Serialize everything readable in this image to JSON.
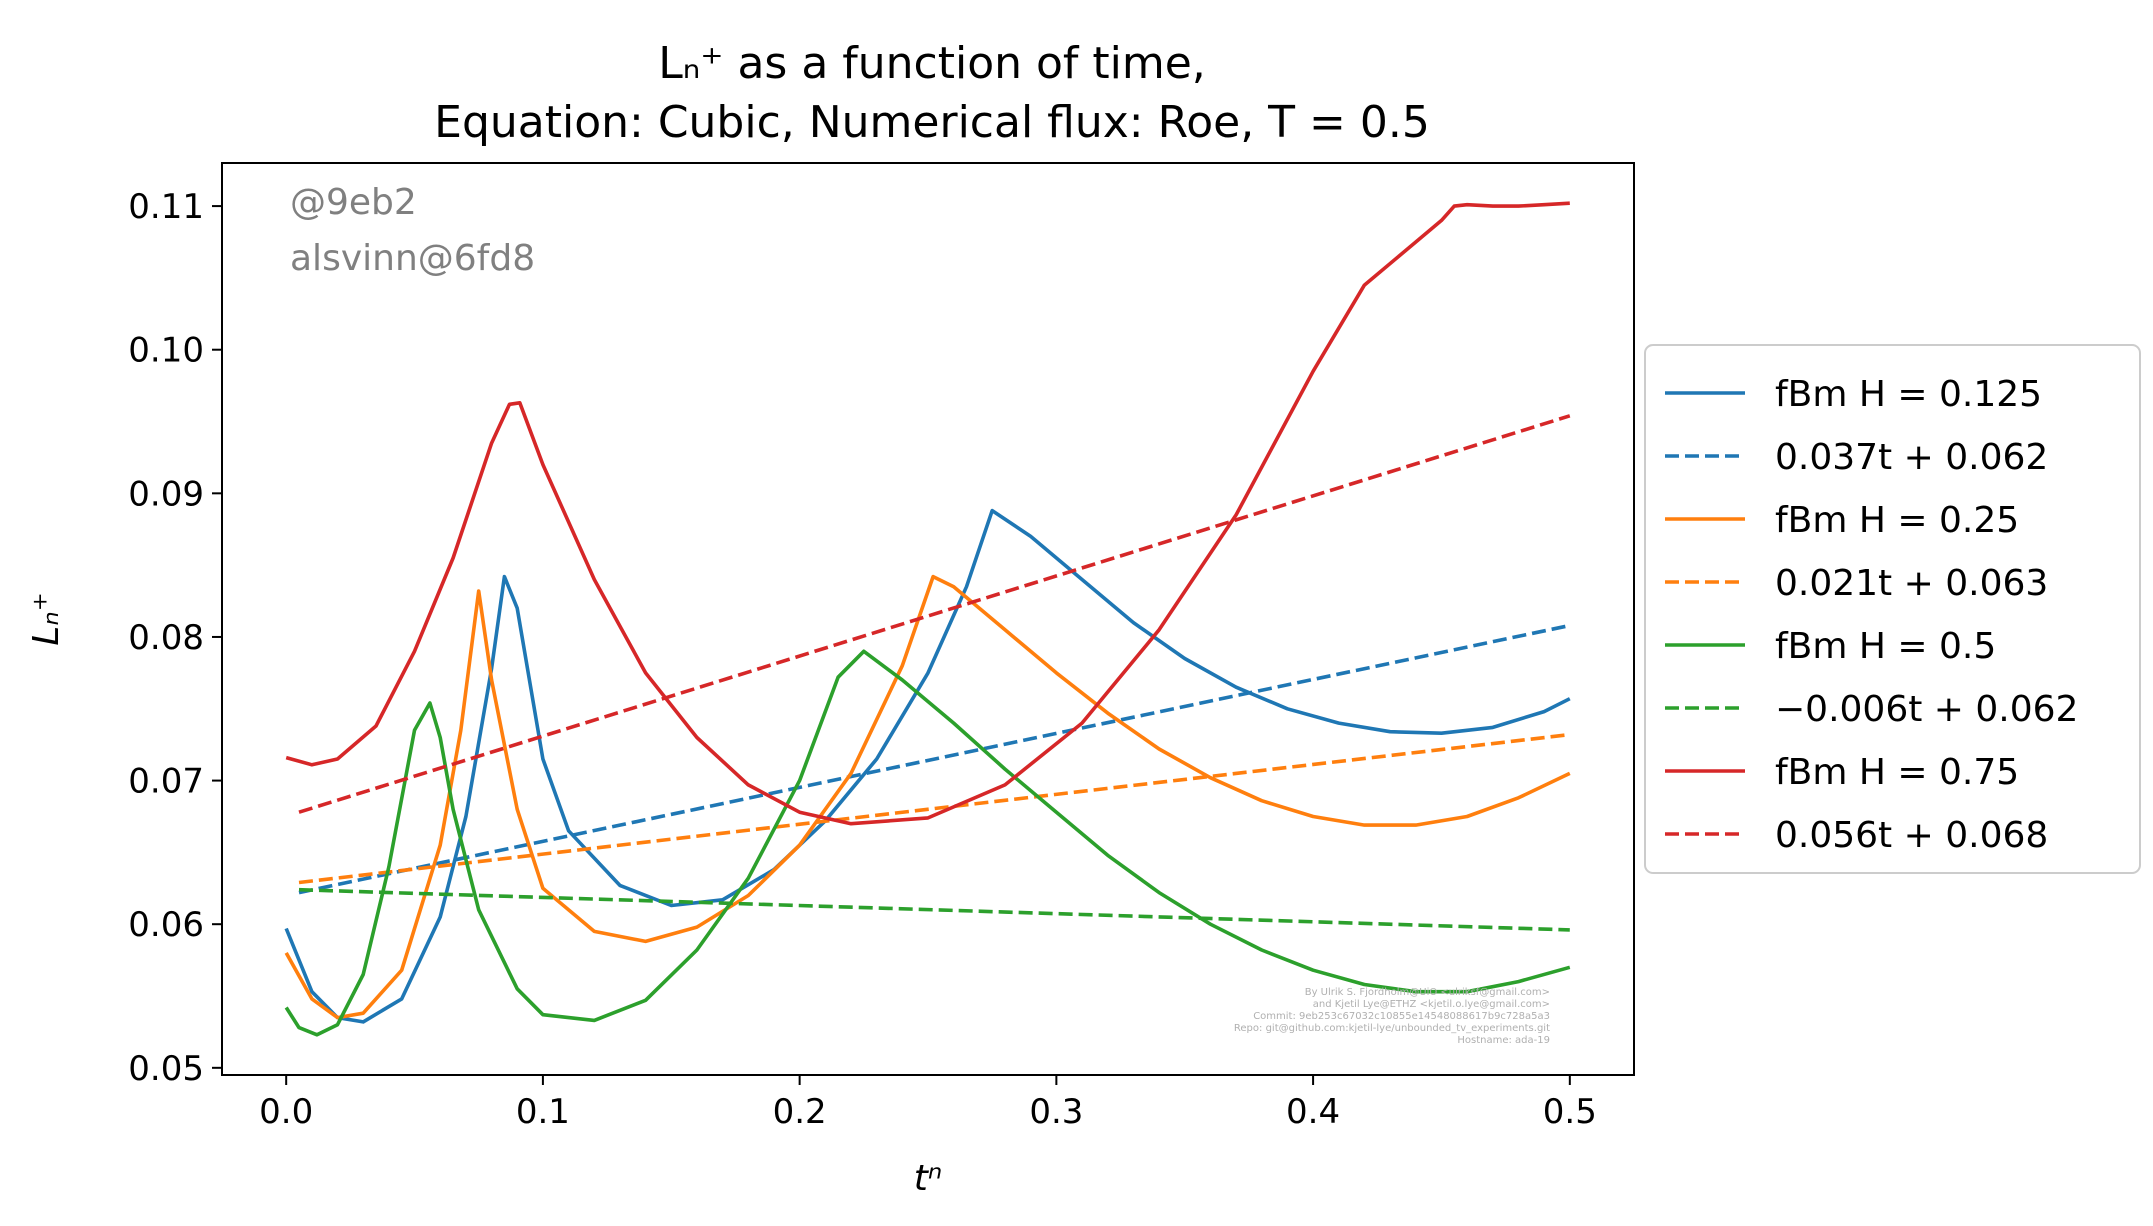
{
  "chart_data": {
    "type": "line",
    "title_lines": [
      "Lₙ⁺  as a function of time,",
      "Equation: Cubic, Numerical flux: Roe, T = 0.5"
    ],
    "xlabel": "tⁿ",
    "ylabel": "Lₙ⁺",
    "xlim": [
      -0.025,
      0.525
    ],
    "ylim": [
      0.0495,
      0.113
    ],
    "xticks": [
      0.0,
      0.1,
      0.2,
      0.3,
      0.4,
      0.5
    ],
    "xtick_labels": [
      "0.0",
      "0.1",
      "0.2",
      "0.3",
      "0.4",
      "0.5"
    ],
    "yticks": [
      0.05,
      0.06,
      0.07,
      0.08,
      0.09,
      0.1,
      0.11
    ],
    "ytick_labels": [
      "0.05",
      "0.06",
      "0.07",
      "0.08",
      "0.09",
      "0.10",
      "0.11"
    ],
    "grid": false,
    "legend_position": "outside-right",
    "annotations": [
      "@9eb2",
      "alsvinn@6fd8"
    ],
    "credit_lines": [
      "By Ulrik S. Fjordholm@UiO <ulriksf@gmail.com>",
      "and Kjetil Lye@ETHZ <kjetil.o.lye@gmail.com>",
      "Commit: 9eb253c67032c10855e14548088617b9c728a5a3",
      "Repo: git@github.com:kjetil-lye/unbounded_tv_experiments.git",
      "Hostname: ada-19"
    ],
    "series": [
      {
        "name": "fBm H = 0.125",
        "color": "#1f77b4",
        "style": "solid",
        "x": [
          0.0,
          0.01,
          0.02,
          0.03,
          0.045,
          0.06,
          0.07,
          0.08,
          0.085,
          0.09,
          0.1,
          0.11,
          0.13,
          0.15,
          0.17,
          0.19,
          0.21,
          0.23,
          0.25,
          0.265,
          0.275,
          0.29,
          0.31,
          0.33,
          0.35,
          0.37,
          0.39,
          0.41,
          0.43,
          0.45,
          0.47,
          0.49,
          0.5
        ],
        "y": [
          0.0597,
          0.0553,
          0.0535,
          0.0532,
          0.0548,
          0.0605,
          0.0675,
          0.0778,
          0.0842,
          0.082,
          0.0715,
          0.0665,
          0.0627,
          0.0613,
          0.0617,
          0.0638,
          0.0672,
          0.0715,
          0.0775,
          0.0835,
          0.0888,
          0.087,
          0.084,
          0.081,
          0.0785,
          0.0765,
          0.075,
          0.074,
          0.0734,
          0.0733,
          0.0737,
          0.0748,
          0.0757
        ]
      },
      {
        "name": "0.037t + 0.062",
        "color": "#1f77b4",
        "style": "dashed",
        "x": [
          0.005,
          0.5
        ],
        "y": [
          0.0622,
          0.0808
        ]
      },
      {
        "name": "fBm H = 0.25",
        "color": "#ff7f0e",
        "style": "solid",
        "x": [
          0.0,
          0.01,
          0.02,
          0.03,
          0.045,
          0.06,
          0.068,
          0.075,
          0.08,
          0.09,
          0.1,
          0.12,
          0.14,
          0.16,
          0.18,
          0.2,
          0.22,
          0.24,
          0.252,
          0.26,
          0.28,
          0.3,
          0.32,
          0.34,
          0.36,
          0.38,
          0.4,
          0.42,
          0.44,
          0.46,
          0.48,
          0.5
        ],
        "y": [
          0.058,
          0.0548,
          0.0535,
          0.0538,
          0.0568,
          0.0655,
          0.0735,
          0.0832,
          0.077,
          0.068,
          0.0625,
          0.0595,
          0.0588,
          0.0598,
          0.062,
          0.0655,
          0.0705,
          0.078,
          0.0842,
          0.0835,
          0.0805,
          0.0775,
          0.0747,
          0.0722,
          0.0702,
          0.0686,
          0.0675,
          0.0669,
          0.0669,
          0.0675,
          0.0688,
          0.0705
        ]
      },
      {
        "name": "0.021t + 0.063",
        "color": "#ff7f0e",
        "style": "dashed",
        "x": [
          0.005,
          0.5
        ],
        "y": [
          0.0629,
          0.0732
        ]
      },
      {
        "name": "fBm H = 0.5",
        "color": "#2ca02c",
        "style": "solid",
        "x": [
          0.0,
          0.005,
          0.012,
          0.02,
          0.03,
          0.04,
          0.05,
          0.056,
          0.06,
          0.065,
          0.075,
          0.09,
          0.1,
          0.12,
          0.14,
          0.16,
          0.18,
          0.2,
          0.215,
          0.225,
          0.24,
          0.26,
          0.28,
          0.3,
          0.32,
          0.34,
          0.36,
          0.38,
          0.4,
          0.42,
          0.44,
          0.46,
          0.48,
          0.5
        ],
        "y": [
          0.0542,
          0.0528,
          0.0523,
          0.053,
          0.0565,
          0.064,
          0.0735,
          0.0754,
          0.073,
          0.068,
          0.061,
          0.0555,
          0.0537,
          0.0533,
          0.0547,
          0.0582,
          0.0632,
          0.07,
          0.0772,
          0.079,
          0.077,
          0.074,
          0.0708,
          0.0678,
          0.0648,
          0.0622,
          0.06,
          0.0582,
          0.0568,
          0.0558,
          0.0553,
          0.0553,
          0.056,
          0.057
        ]
      },
      {
        "name": "−0.006t + 0.062",
        "color": "#2ca02c",
        "style": "dashed",
        "x": [
          0.005,
          0.5
        ],
        "y": [
          0.0624,
          0.0596
        ]
      },
      {
        "name": "fBm H = 0.75",
        "color": "#d62728",
        "style": "solid",
        "x": [
          0.0,
          0.01,
          0.02,
          0.035,
          0.05,
          0.065,
          0.08,
          0.087,
          0.091,
          0.1,
          0.12,
          0.14,
          0.16,
          0.18,
          0.2,
          0.22,
          0.25,
          0.28,
          0.31,
          0.34,
          0.37,
          0.4,
          0.42,
          0.44,
          0.45,
          0.455,
          0.46,
          0.47,
          0.48,
          0.49,
          0.5
        ],
        "y": [
          0.0716,
          0.0711,
          0.0715,
          0.0738,
          0.079,
          0.0855,
          0.0935,
          0.0962,
          0.0963,
          0.092,
          0.084,
          0.0775,
          0.073,
          0.0697,
          0.0678,
          0.067,
          0.0674,
          0.0697,
          0.074,
          0.0805,
          0.0885,
          0.0985,
          0.1045,
          0.1075,
          0.109,
          0.11,
          0.1101,
          0.11,
          0.11,
          0.1101,
          0.1102
        ]
      },
      {
        "name": "0.056t + 0.068",
        "color": "#d62728",
        "style": "dashed",
        "x": [
          0.005,
          0.5
        ],
        "y": [
          0.0678,
          0.0954
        ]
      }
    ]
  }
}
